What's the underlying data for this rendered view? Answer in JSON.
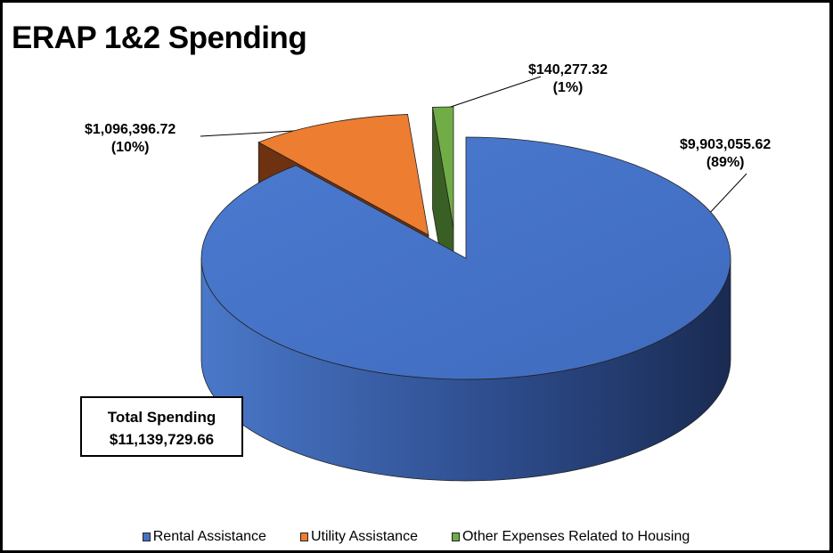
{
  "chart_data": {
    "type": "pie",
    "title": "ERAP 1&2 Spending",
    "three_d": true,
    "exploded": true,
    "legend_position": "bottom",
    "total": {
      "label": "Total Spending",
      "value": "$11,139,729.66"
    },
    "slices": [
      {
        "name": "Rental Assistance",
        "value": 9903055.62,
        "value_label": "$9,903,055.62",
        "percent_label": "(89%)",
        "color": "#4472C4",
        "side_color": "#24396A"
      },
      {
        "name": "Utility Assistance",
        "value": 1096396.72,
        "value_label": "$1,096,396.72",
        "percent_label": "(10%)",
        "color": "#ED7D31",
        "side_color": "#6E3210"
      },
      {
        "name": "Other Expenses Related to Housing",
        "value": 140277.32,
        "value_label": "$140,277.32",
        "percent_label": "(1%)",
        "color": "#70AD47",
        "side_color": "#3A5F24"
      }
    ]
  }
}
